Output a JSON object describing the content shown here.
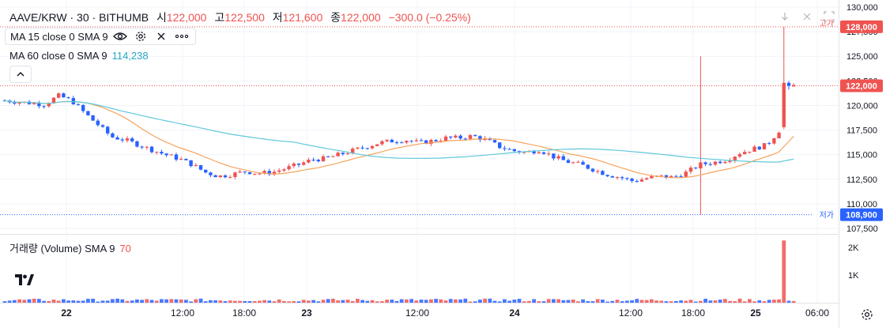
{
  "header": {
    "symbol": "AAVE/KRW · 30 · BITHUMB",
    "open_label": "시",
    "open_value": "122,000",
    "high_label": "고",
    "high_value": "122,500",
    "low_label": "저",
    "low_value": "121,600",
    "close_label": "종",
    "close_value": "122,000",
    "change": "−300.0 (−0.25%)"
  },
  "indicators": [
    {
      "label": "MA 15 close 0 SMA 9",
      "value": ""
    },
    {
      "label": "MA 60 close 0 SMA 9",
      "value": "114,238"
    }
  ],
  "volume_legend": {
    "label": "거래량 (Volume) SMA 9",
    "value": "70"
  },
  "price_axis": {
    "ticks": [
      "130,000",
      "127,500",
      "125,000",
      "122,500",
      "120,000",
      "117,500",
      "115,000",
      "112,500",
      "110,000",
      "107,500"
    ],
    "tick_values": [
      130000,
      127500,
      125000,
      122500,
      120000,
      117500,
      115000,
      112500,
      110000,
      107500
    ],
    "high_badge": {
      "text": "128,000",
      "value": 128000,
      "label": "고가"
    },
    "current_badge": {
      "text": "122,000",
      "value": 122000
    },
    "low_badge": {
      "text": "108,900",
      "value": 108900,
      "label": "저가"
    }
  },
  "volume_axis": {
    "ticks": [
      "2K",
      "1K"
    ],
    "tick_values": [
      2000,
      1000
    ]
  },
  "time_axis": {
    "labels": [
      "22",
      "12:00",
      "18:00",
      "23",
      "12:00",
      "24",
      "12:00",
      "18:00",
      "25",
      "06:00"
    ]
  },
  "colors": {
    "up": "#ef5350",
    "down": "#2962ff",
    "ma15": "#f7a35c",
    "ma60": "#5ec8d8",
    "grid": "#f0f3fa"
  },
  "icons": [
    "down-arrow-icon",
    "close-icon",
    "fullscreen-icon",
    "eye-icon",
    "gear-icon",
    "more-icon",
    "chevron-up-icon",
    "tradingview-logo-icon",
    "settings-icon"
  ]
}
